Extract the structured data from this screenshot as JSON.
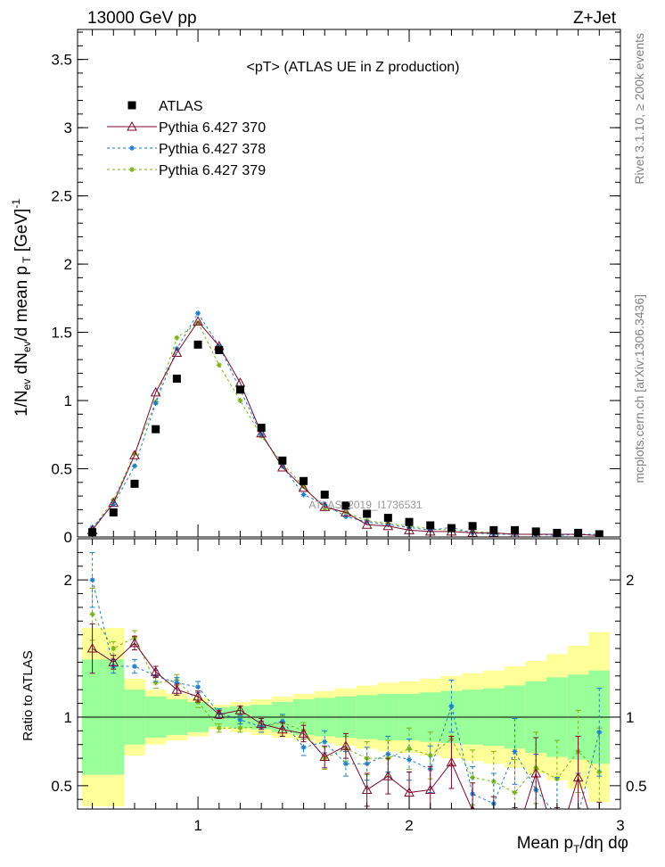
{
  "header": {
    "energy": "13000 GeV pp",
    "process": "Z+Jet"
  },
  "side": {
    "rivet": "Rivet 3.1.10, ≥ 200k events",
    "mcplots": "mcplots.cern.ch [arXiv:1306.3436]"
  },
  "chart_data": {
    "type": "line",
    "title": "<pT> (ATLAS UE in Z production)",
    "watermark": "ATLAS_2019_I1736531",
    "xlabel": "Mean p_T/dη dφ",
    "xlim": [
      0.43,
      3.0
    ],
    "grid": false,
    "legend_position": "top-left",
    "main": {
      "ylabel": "1/N_ev dN_ev/d mean p_T [GeV]^-1",
      "ylim": [
        0,
        3.72
      ],
      "yticks": [
        0,
        0.5,
        1,
        1.5,
        2,
        2.5,
        3,
        3.5
      ],
      "ytick_labels": [
        "0",
        "0.5",
        "1",
        "1.5",
        "2",
        "2.5",
        "3",
        "3.5"
      ]
    },
    "ratio": {
      "ylabel": "Ratio to ATLAS",
      "ylim": [
        0.33,
        2.3
      ],
      "yticks": [
        0.5,
        1,
        2
      ],
      "ytick_labels": [
        "0.5",
        "1",
        "2"
      ]
    },
    "xticks": [
      1,
      2,
      3
    ],
    "xtick_labels": [
      "1",
      "2",
      "3"
    ],
    "x": [
      0.5,
      0.6,
      0.7,
      0.8,
      0.9,
      1.0,
      1.1,
      1.2,
      1.3,
      1.4,
      1.5,
      1.6,
      1.7,
      1.8,
      1.9,
      2.0,
      2.1,
      2.2,
      2.3,
      2.4,
      2.5,
      2.6,
      2.7,
      2.8,
      2.9
    ],
    "data": {
      "name": "ATLAS",
      "values": [
        0.035,
        0.18,
        0.39,
        0.79,
        1.16,
        1.41,
        1.37,
        1.08,
        0.8,
        0.56,
        0.41,
        0.31,
        0.23,
        0.17,
        0.14,
        0.11,
        0.085,
        0.065,
        0.08,
        0.05,
        0.05,
        0.04,
        0.03,
        0.03,
        0.02
      ],
      "band_inner": [
        0.42,
        0.42,
        0.2,
        0.15,
        0.13,
        0.11,
        0.07,
        0.08,
        0.09,
        0.11,
        0.13,
        0.14,
        0.15,
        0.16,
        0.17,
        0.17,
        0.18,
        0.19,
        0.2,
        0.21,
        0.23,
        0.26,
        0.29,
        0.31,
        0.34
      ],
      "band_outer": [
        0.65,
        0.65,
        0.28,
        0.2,
        0.17,
        0.14,
        0.09,
        0.11,
        0.13,
        0.15,
        0.17,
        0.19,
        0.21,
        0.23,
        0.25,
        0.26,
        0.28,
        0.3,
        0.32,
        0.34,
        0.37,
        0.41,
        0.46,
        0.52,
        0.62
      ]
    },
    "series": [
      {
        "name": "Pythia 6.427 370",
        "color": "#7a0a2e",
        "marker": "triangle",
        "dash": "",
        "values": [
          0.05,
          0.25,
          0.6,
          1.06,
          1.35,
          1.58,
          1.4,
          1.13,
          0.76,
          0.51,
          0.36,
          0.22,
          0.18,
          0.09,
          0.08,
          0.05,
          0.04,
          0.04,
          0.03,
          0.03,
          0.02,
          0.02,
          0.02,
          0.02,
          0.01
        ],
        "ratio": [
          1.5,
          1.4,
          1.54,
          1.33,
          1.2,
          1.15,
          1.02,
          1.05,
          0.95,
          0.91,
          0.88,
          0.71,
          0.79,
          0.47,
          0.57,
          0.45,
          0.47,
          0.67,
          0.32,
          0.2,
          0.1,
          0.59,
          0.06,
          0.56,
          0.06
        ],
        "ratio_err": [
          0.18,
          0.05,
          0.05,
          0.04,
          0.04,
          0.04,
          0.03,
          0.03,
          0.04,
          0.05,
          0.06,
          0.08,
          0.09,
          0.12,
          0.13,
          0.15,
          0.17,
          0.19,
          0.2,
          0.22,
          0.24,
          0.26,
          0.28,
          0.3,
          0.32
        ]
      },
      {
        "name": "Pythia 6.427 378",
        "color": "#1a7ec9",
        "marker": "star",
        "dash": "3,3",
        "values": [
          0.07,
          0.24,
          0.52,
          0.98,
          1.38,
          1.64,
          1.4,
          1.08,
          0.75,
          0.52,
          0.31,
          0.24,
          0.15,
          0.11,
          0.09,
          0.07,
          0.05,
          0.07,
          0.03,
          0.02,
          0.02,
          0.02,
          0.01,
          0.02,
          0.02
        ],
        "ratio": [
          2.0,
          1.37,
          1.37,
          1.3,
          1.25,
          1.22,
          1.03,
          0.98,
          0.93,
          0.97,
          0.78,
          0.82,
          0.66,
          0.66,
          0.73,
          0.69,
          0.62,
          1.08,
          0.44,
          0.37,
          0.75,
          0.47,
          0.28,
          0.29,
          0.89
        ],
        "ratio_err": [
          0.2,
          0.05,
          0.05,
          0.04,
          0.04,
          0.04,
          0.03,
          0.03,
          0.04,
          0.05,
          0.06,
          0.08,
          0.09,
          0.12,
          0.13,
          0.15,
          0.17,
          0.19,
          0.2,
          0.22,
          0.24,
          0.26,
          0.28,
          0.3,
          0.32
        ]
      },
      {
        "name": "Pythia 6.427 379",
        "color": "#7ab317",
        "marker": "star",
        "dash": "3,3",
        "values": [
          0.06,
          0.27,
          0.61,
          0.99,
          1.46,
          1.57,
          1.26,
          1.0,
          0.74,
          0.54,
          0.37,
          0.21,
          0.18,
          0.12,
          0.1,
          0.08,
          0.06,
          0.05,
          0.04,
          0.03,
          0.02,
          0.02,
          0.02,
          0.02,
          0.01
        ],
        "ratio": [
          1.75,
          1.5,
          1.58,
          1.25,
          1.27,
          1.11,
          0.92,
          0.92,
          0.93,
          0.96,
          0.9,
          0.7,
          0.77,
          0.7,
          0.7,
          0.77,
          0.72,
          0.84,
          0.56,
          0.53,
          0.45,
          0.63,
          0.55,
          0.75,
          0.6
        ],
        "ratio_err": [
          0.19,
          0.05,
          0.05,
          0.04,
          0.04,
          0.04,
          0.03,
          0.03,
          0.04,
          0.05,
          0.06,
          0.08,
          0.09,
          0.12,
          0.13,
          0.15,
          0.17,
          0.19,
          0.2,
          0.22,
          0.24,
          0.26,
          0.28,
          0.3,
          0.32
        ]
      }
    ]
  },
  "colors": {
    "band_inner": "#99ff99",
    "band_outer": "#ffff99",
    "data_marker": "#000000",
    "side_text": "#808080",
    "watermark": "#999999"
  }
}
